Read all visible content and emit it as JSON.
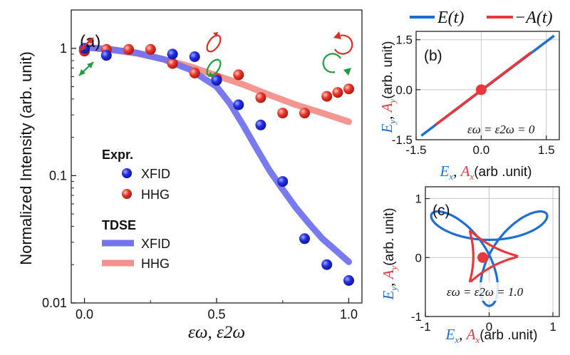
{
  "colors": {
    "blue": "#1f6fd0",
    "red": "#e8383d",
    "blue_dot": "#1a22d6",
    "red_dot": "#e02a23",
    "tdse_blue": "#7373ee",
    "tdse_red": "#f2908c",
    "green": "#1f9d3b",
    "axis": "#222222",
    "grid": "#c8c8c8"
  },
  "legend_top": [
    {
      "label": "E(t)",
      "color": "#1f6fd0"
    },
    {
      "label": "−A(t)",
      "color": "#e8383d"
    }
  ],
  "chart_data": [
    {
      "panel": "(a)",
      "type": "scatter",
      "yscale": "log",
      "xlim": [
        -0.05,
        1.05
      ],
      "ylim": [
        0.01,
        2.0
      ],
      "xticks": [
        0.0,
        0.5,
        1.0
      ],
      "xtick_labels": [
        "0.0",
        "0.5",
        "1.0"
      ],
      "yticks": [
        0.01,
        0.1,
        1
      ],
      "ytick_labels": [
        "0.01",
        "0.1",
        "1"
      ],
      "xlabel": "εω, ε2ω",
      "ylabel": "Normalized Intensity (arb. unit)",
      "legend_title_expr": "Expr.",
      "legend_title_tdse": "TDSE",
      "series": [
        {
          "name": "XFID",
          "kind": "Expr.",
          "color": "#1a22d6",
          "x": [
            0.0,
            0.083,
            0.333,
            0.417,
            0.5,
            0.583,
            0.667,
            0.75,
            0.833,
            0.917,
            1.0
          ],
          "values": [
            1.0,
            0.88,
            0.9,
            0.86,
            0.56,
            0.36,
            0.25,
            0.09,
            0.032,
            0.02,
            0.015
          ]
        },
        {
          "name": "HHG",
          "kind": "Expr.",
          "color": "#e02a23",
          "x": [
            0.0,
            0.083,
            0.167,
            0.25,
            0.333,
            0.417,
            0.5,
            0.583,
            0.667,
            0.75,
            0.833,
            0.917,
            0.958,
            1.0
          ],
          "values": [
            0.95,
            0.98,
            0.98,
            0.98,
            0.76,
            0.64,
            0.58,
            0.62,
            0.41,
            0.31,
            0.31,
            0.42,
            0.45,
            0.48
          ]
        },
        {
          "name": "XFID",
          "kind": "TDSE",
          "color": "#7373ee",
          "x": [
            0.0,
            0.1,
            0.2,
            0.3,
            0.4,
            0.5,
            0.55,
            0.6,
            0.65,
            0.7,
            0.75,
            0.8,
            0.85,
            0.9,
            0.95,
            1.0
          ],
          "values": [
            1.02,
            0.98,
            0.92,
            0.82,
            0.68,
            0.5,
            0.37,
            0.25,
            0.165,
            0.11,
            0.078,
            0.056,
            0.042,
            0.032,
            0.026,
            0.021
          ]
        },
        {
          "name": "HHG",
          "kind": "TDSE",
          "color": "#f2908c",
          "x": [
            0.0,
            0.1,
            0.2,
            0.3,
            0.4,
            0.5,
            0.6,
            0.7,
            0.8,
            0.9,
            1.0
          ],
          "values": [
            1.02,
            0.97,
            0.91,
            0.82,
            0.72,
            0.61,
            0.52,
            0.43,
            0.36,
            0.31,
            0.265
          ]
        }
      ]
    },
    {
      "panel": "(b)",
      "type": "line",
      "xlim": [
        -1.5,
        1.8
      ],
      "ylim": [
        -1.5,
        1.75
      ],
      "xticks": [
        -1.5,
        0.0,
        1.5
      ],
      "xtick_labels": [
        "-1.5",
        "0.0",
        "1.5"
      ],
      "yticks": [
        -1.5,
        0.0,
        1.5
      ],
      "ytick_labels": [
        "-1.5",
        "0.0",
        "1.5"
      ],
      "xlabel_prefix": "E",
      "xlabel_sub": "x",
      "xlabel_mid": "A",
      "xlabel_unit": "(arb .unit)",
      "ylabel_prefix": "E",
      "ylabel_sub": "y",
      "ylabel_mid": "A",
      "ylabel_unit": "(arb. unit)",
      "annotation": "εω = ε2ω = 0",
      "series": [
        {
          "name": "E(t)",
          "color": "#1f6fd0",
          "x": [
            -1.38,
            1.68
          ],
          "y": [
            -1.38,
            1.62
          ]
        },
        {
          "name": "−A(t)",
          "color": "#e8383d",
          "x": [
            -1.05,
            1.15
          ],
          "y": [
            -1.05,
            1.12
          ]
        }
      ],
      "marker": {
        "x": 0.0,
        "y": 0.0
      }
    },
    {
      "panel": "(c)",
      "type": "line",
      "xlim": [
        -1.0,
        1.1
      ],
      "ylim": [
        -1.0,
        1.2
      ],
      "xticks": [
        -1,
        0,
        1
      ],
      "xtick_labels": [
        "-1",
        "0",
        "1"
      ],
      "yticks": [
        -1,
        0,
        1
      ],
      "ytick_labels": [
        "-1",
        "0",
        "1"
      ],
      "xlabel_prefix": "E",
      "xlabel_sub": "x",
      "xlabel_mid": "A",
      "xlabel_unit": "(arb .unit)",
      "ylabel_prefix": "E",
      "ylabel_sub": "y",
      "ylabel_mid": "A",
      "ylabel_unit": "(arb. unit)",
      "annotation": "εω = ε2ω = 1.0",
      "series": [
        {
          "name": "E(t)",
          "color": "#1f6fd0",
          "curve": "trefoil",
          "E1": 0.56,
          "E2": 0.48
        },
        {
          "name": "−A(t)",
          "color": "#e8383d",
          "curve": "trefoil-A",
          "A1": 0.56,
          "A2": 0.24
        }
      ],
      "marker": {
        "x": -0.1,
        "y": 0.0
      }
    }
  ]
}
